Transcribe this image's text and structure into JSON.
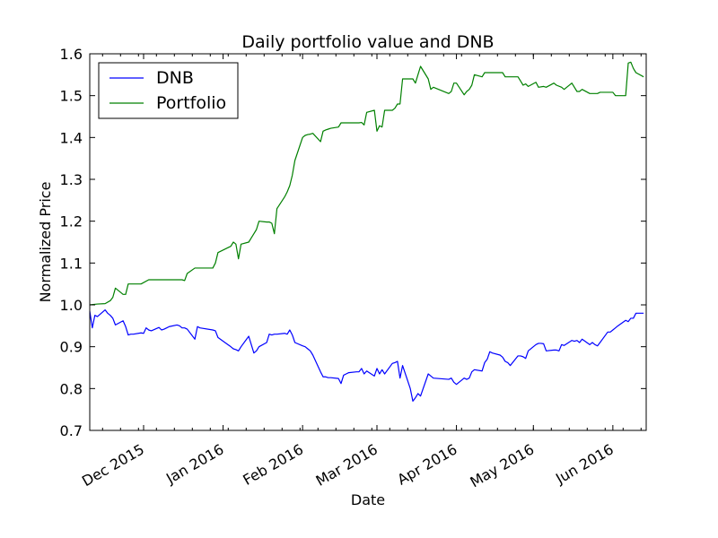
{
  "chart_data": {
    "type": "line",
    "title": "Daily portfolio value and DNB",
    "xlabel": "Date",
    "ylabel": "Normalized Price",
    "xlim": [
      "2015-11-10",
      "2016-06-14"
    ],
    "ylim": [
      0.7,
      1.6
    ],
    "yticks": [
      0.7,
      0.8,
      0.9,
      1.0,
      1.1,
      1.2,
      1.3,
      1.4,
      1.5,
      1.6
    ],
    "ytick_labels": [
      "0.7",
      "0.8",
      "0.9",
      "1.0",
      "1.1",
      "1.2",
      "1.3",
      "1.4",
      "1.5",
      "1.6"
    ],
    "xticks": [
      "2015-12-01",
      "2016-01-01",
      "2016-02-01",
      "2016-03-01",
      "2016-04-01",
      "2016-05-01",
      "2016-06-01"
    ],
    "xtick_labels": [
      "Dec 2015",
      "Jan 2016",
      "Feb 2016",
      "Mar 2016",
      "Apr 2016",
      "May 2016",
      "Jun 2016"
    ],
    "grid": false,
    "legend_position": "top-left",
    "series": [
      {
        "name": "DNB",
        "color": "#0000ff",
        "points": [
          [
            "2015-11-10",
            0.985
          ],
          [
            "2015-11-11",
            0.945
          ],
          [
            "2015-11-12",
            0.975
          ],
          [
            "2015-11-13",
            0.972
          ],
          [
            "2015-11-16",
            0.988
          ],
          [
            "2015-11-17",
            0.98
          ],
          [
            "2015-11-18",
            0.975
          ],
          [
            "2015-11-19",
            0.968
          ],
          [
            "2015-11-20",
            0.952
          ],
          [
            "2015-11-23",
            0.962
          ],
          [
            "2015-11-24",
            0.948
          ],
          [
            "2015-11-25",
            0.928
          ],
          [
            "2015-11-26",
            0.93
          ],
          [
            "2015-11-27",
            0.93
          ],
          [
            "2015-11-30",
            0.933
          ],
          [
            "2015-12-01",
            0.932
          ],
          [
            "2015-12-02",
            0.945
          ],
          [
            "2015-12-03",
            0.94
          ],
          [
            "2015-12-04",
            0.938
          ],
          [
            "2015-12-07",
            0.946
          ],
          [
            "2015-12-08",
            0.94
          ],
          [
            "2015-12-09",
            0.942
          ],
          [
            "2015-12-10",
            0.945
          ],
          [
            "2015-12-11",
            0.948
          ],
          [
            "2015-12-14",
            0.952
          ],
          [
            "2015-12-15",
            0.95
          ],
          [
            "2015-12-16",
            0.945
          ],
          [
            "2015-12-17",
            0.945
          ],
          [
            "2015-12-18",
            0.942
          ],
          [
            "2015-12-21",
            0.918
          ],
          [
            "2015-12-22",
            0.948
          ],
          [
            "2015-12-23",
            0.945
          ],
          [
            "2015-12-28",
            0.94
          ],
          [
            "2015-12-29",
            0.938
          ],
          [
            "2015-12-30",
            0.922
          ],
          [
            "2016-01-04",
            0.9
          ],
          [
            "2016-01-05",
            0.895
          ],
          [
            "2016-01-06",
            0.893
          ],
          [
            "2016-01-07",
            0.89
          ],
          [
            "2016-01-08",
            0.9
          ],
          [
            "2016-01-11",
            0.925
          ],
          [
            "2016-01-12",
            0.905
          ],
          [
            "2016-01-13",
            0.885
          ],
          [
            "2016-01-14",
            0.89
          ],
          [
            "2016-01-15",
            0.9
          ],
          [
            "2016-01-18",
            0.91
          ],
          [
            "2016-01-19",
            0.93
          ],
          [
            "2016-01-20",
            0.928
          ],
          [
            "2016-01-21",
            0.93
          ],
          [
            "2016-01-22",
            0.93
          ],
          [
            "2016-01-25",
            0.932
          ],
          [
            "2016-01-26",
            0.93
          ],
          [
            "2016-01-27",
            0.94
          ],
          [
            "2016-01-28",
            0.928
          ],
          [
            "2016-01-29",
            0.91
          ],
          [
            "2016-02-01",
            0.902
          ],
          [
            "2016-02-02",
            0.9
          ],
          [
            "2016-02-03",
            0.895
          ],
          [
            "2016-02-04",
            0.89
          ],
          [
            "2016-02-05",
            0.88
          ],
          [
            "2016-02-08",
            0.84
          ],
          [
            "2016-02-09",
            0.828
          ],
          [
            "2016-02-10",
            0.828
          ],
          [
            "2016-02-11",
            0.826
          ],
          [
            "2016-02-12",
            0.826
          ],
          [
            "2016-02-15",
            0.824
          ],
          [
            "2016-02-16",
            0.812
          ],
          [
            "2016-02-17",
            0.832
          ],
          [
            "2016-02-18",
            0.835
          ],
          [
            "2016-02-19",
            0.838
          ],
          [
            "2016-02-22",
            0.84
          ],
          [
            "2016-02-23",
            0.84
          ],
          [
            "2016-02-24",
            0.848
          ],
          [
            "2016-02-25",
            0.835
          ],
          [
            "2016-02-26",
            0.842
          ],
          [
            "2016-02-29",
            0.83
          ],
          [
            "2016-03-01",
            0.848
          ],
          [
            "2016-03-02",
            0.835
          ],
          [
            "2016-03-03",
            0.845
          ],
          [
            "2016-03-04",
            0.835
          ],
          [
            "2016-03-07",
            0.86
          ],
          [
            "2016-03-08",
            0.862
          ],
          [
            "2016-03-09",
            0.865
          ],
          [
            "2016-03-10",
            0.825
          ],
          [
            "2016-03-11",
            0.855
          ],
          [
            "2016-03-14",
            0.8
          ],
          [
            "2016-03-15",
            0.77
          ],
          [
            "2016-03-16",
            0.778
          ],
          [
            "2016-03-17",
            0.788
          ],
          [
            "2016-03-18",
            0.782
          ],
          [
            "2016-03-21",
            0.835
          ],
          [
            "2016-03-22",
            0.83
          ],
          [
            "2016-03-23",
            0.825
          ],
          [
            "2016-03-29",
            0.822
          ],
          [
            "2016-03-30",
            0.825
          ],
          [
            "2016-03-31",
            0.815
          ],
          [
            "2016-04-01",
            0.81
          ],
          [
            "2016-04-04",
            0.825
          ],
          [
            "2016-04-05",
            0.822
          ],
          [
            "2016-04-06",
            0.825
          ],
          [
            "2016-04-07",
            0.84
          ],
          [
            "2016-04-08",
            0.845
          ],
          [
            "2016-04-11",
            0.842
          ],
          [
            "2016-04-12",
            0.862
          ],
          [
            "2016-04-13",
            0.87
          ],
          [
            "2016-04-14",
            0.888
          ],
          [
            "2016-04-15",
            0.885
          ],
          [
            "2016-04-18",
            0.88
          ],
          [
            "2016-04-19",
            0.875
          ],
          [
            "2016-04-20",
            0.865
          ],
          [
            "2016-04-21",
            0.862
          ],
          [
            "2016-04-22",
            0.855
          ],
          [
            "2016-04-25",
            0.878
          ],
          [
            "2016-04-26",
            0.878
          ],
          [
            "2016-04-27",
            0.876
          ],
          [
            "2016-04-28",
            0.872
          ],
          [
            "2016-04-29",
            0.89
          ],
          [
            "2016-05-02",
            0.905
          ],
          [
            "2016-05-03",
            0.908
          ],
          [
            "2016-05-04",
            0.908
          ],
          [
            "2016-05-05",
            0.907
          ],
          [
            "2016-05-06",
            0.89
          ],
          [
            "2016-05-09",
            0.892
          ],
          [
            "2016-05-10",
            0.892
          ],
          [
            "2016-05-11",
            0.89
          ],
          [
            "2016-05-12",
            0.905
          ],
          [
            "2016-05-13",
            0.903
          ],
          [
            "2016-05-16",
            0.915
          ],
          [
            "2016-05-17",
            0.913
          ],
          [
            "2016-05-18",
            0.915
          ],
          [
            "2016-05-19",
            0.91
          ],
          [
            "2016-05-20",
            0.918
          ],
          [
            "2016-05-23",
            0.905
          ],
          [
            "2016-05-24",
            0.91
          ],
          [
            "2016-05-25",
            0.905
          ],
          [
            "2016-05-26",
            0.902
          ],
          [
            "2016-05-27",
            0.91
          ],
          [
            "2016-05-30",
            0.935
          ],
          [
            "2016-05-31",
            0.935
          ],
          [
            "2016-06-01",
            0.94
          ],
          [
            "2016-06-02",
            0.945
          ],
          [
            "2016-06-03",
            0.95
          ],
          [
            "2016-06-06",
            0.963
          ],
          [
            "2016-06-07",
            0.96
          ],
          [
            "2016-06-08",
            0.968
          ],
          [
            "2016-06-09",
            0.968
          ],
          [
            "2016-06-10",
            0.98
          ],
          [
            "2016-06-13",
            0.98
          ]
        ]
      },
      {
        "name": "Portfolio",
        "color": "#008000",
        "points": [
          [
            "2015-11-10",
            1.0
          ],
          [
            "2015-11-13",
            1.002
          ],
          [
            "2015-11-16",
            1.003
          ],
          [
            "2015-11-18",
            1.01
          ],
          [
            "2015-11-19",
            1.018
          ],
          [
            "2015-11-20",
            1.04
          ],
          [
            "2015-11-23",
            1.025
          ],
          [
            "2015-11-24",
            1.025
          ],
          [
            "2015-11-25",
            1.05
          ],
          [
            "2015-11-30",
            1.05
          ],
          [
            "2015-12-03",
            1.06
          ],
          [
            "2015-12-10",
            1.06
          ],
          [
            "2015-12-16",
            1.06
          ],
          [
            "2015-12-17",
            1.058
          ],
          [
            "2015-12-18",
            1.075
          ],
          [
            "2015-12-21",
            1.088
          ],
          [
            "2015-12-28",
            1.088
          ],
          [
            "2015-12-29",
            1.1
          ],
          [
            "2015-12-30",
            1.125
          ],
          [
            "2016-01-04",
            1.14
          ],
          [
            "2016-01-05",
            1.15
          ],
          [
            "2016-01-06",
            1.145
          ],
          [
            "2016-01-07",
            1.11
          ],
          [
            "2016-01-08",
            1.145
          ],
          [
            "2016-01-11",
            1.15
          ],
          [
            "2016-01-12",
            1.16
          ],
          [
            "2016-01-13",
            1.17
          ],
          [
            "2016-01-14",
            1.18
          ],
          [
            "2016-01-15",
            1.2
          ],
          [
            "2016-01-18",
            1.198
          ],
          [
            "2016-01-19",
            1.198
          ],
          [
            "2016-01-20",
            1.195
          ],
          [
            "2016-01-21",
            1.17
          ],
          [
            "2016-01-22",
            1.23
          ],
          [
            "2016-01-25",
            1.258
          ],
          [
            "2016-01-26",
            1.27
          ],
          [
            "2016-01-27",
            1.285
          ],
          [
            "2016-01-28",
            1.31
          ],
          [
            "2016-01-29",
            1.345
          ],
          [
            "2016-02-01",
            1.4
          ],
          [
            "2016-02-02",
            1.405
          ],
          [
            "2016-02-03",
            1.407
          ],
          [
            "2016-02-04",
            1.408
          ],
          [
            "2016-02-05",
            1.41
          ],
          [
            "2016-02-08",
            1.39
          ],
          [
            "2016-02-09",
            1.415
          ],
          [
            "2016-02-10",
            1.418
          ],
          [
            "2016-02-11",
            1.42
          ],
          [
            "2016-02-12",
            1.422
          ],
          [
            "2016-02-15",
            1.425
          ],
          [
            "2016-02-16",
            1.435
          ],
          [
            "2016-02-22",
            1.435
          ],
          [
            "2016-02-23",
            1.435
          ],
          [
            "2016-02-24",
            1.436
          ],
          [
            "2016-02-25",
            1.43
          ],
          [
            "2016-02-26",
            1.46
          ],
          [
            "2016-02-29",
            1.465
          ],
          [
            "2016-03-01",
            1.415
          ],
          [
            "2016-03-02",
            1.428
          ],
          [
            "2016-03-03",
            1.425
          ],
          [
            "2016-03-04",
            1.465
          ],
          [
            "2016-03-07",
            1.465
          ],
          [
            "2016-03-08",
            1.47
          ],
          [
            "2016-03-09",
            1.48
          ],
          [
            "2016-03-10",
            1.48
          ],
          [
            "2016-03-11",
            1.54
          ],
          [
            "2016-03-14",
            1.54
          ],
          [
            "2016-03-15",
            1.54
          ],
          [
            "2016-03-16",
            1.53
          ],
          [
            "2016-03-17",
            1.55
          ],
          [
            "2016-03-18",
            1.57
          ],
          [
            "2016-03-21",
            1.54
          ],
          [
            "2016-03-22",
            1.515
          ],
          [
            "2016-03-23",
            1.52
          ],
          [
            "2016-03-29",
            1.505
          ],
          [
            "2016-03-30",
            1.51
          ],
          [
            "2016-03-31",
            1.53
          ],
          [
            "2016-04-01",
            1.53
          ],
          [
            "2016-04-04",
            1.502
          ],
          [
            "2016-04-05",
            1.51
          ],
          [
            "2016-04-06",
            1.515
          ],
          [
            "2016-04-07",
            1.525
          ],
          [
            "2016-04-08",
            1.55
          ],
          [
            "2016-04-11",
            1.545
          ],
          [
            "2016-04-12",
            1.555
          ],
          [
            "2016-04-19",
            1.555
          ],
          [
            "2016-04-20",
            1.545
          ],
          [
            "2016-04-25",
            1.545
          ],
          [
            "2016-04-26",
            1.535
          ],
          [
            "2016-04-27",
            1.525
          ],
          [
            "2016-04-28",
            1.528
          ],
          [
            "2016-04-29",
            1.522
          ],
          [
            "2016-05-02",
            1.532
          ],
          [
            "2016-05-03",
            1.52
          ],
          [
            "2016-05-05",
            1.522
          ],
          [
            "2016-05-06",
            1.52
          ],
          [
            "2016-05-09",
            1.53
          ],
          [
            "2016-05-10",
            1.525
          ],
          [
            "2016-05-12",
            1.52
          ],
          [
            "2016-05-13",
            1.515
          ],
          [
            "2016-05-16",
            1.53
          ],
          [
            "2016-05-17",
            1.52
          ],
          [
            "2016-05-18",
            1.51
          ],
          [
            "2016-05-19",
            1.51
          ],
          [
            "2016-05-20",
            1.515
          ],
          [
            "2016-05-23",
            1.505
          ],
          [
            "2016-05-26",
            1.505
          ],
          [
            "2016-05-27",
            1.508
          ],
          [
            "2016-06-01",
            1.508
          ],
          [
            "2016-06-02",
            1.5
          ],
          [
            "2016-06-06",
            1.5
          ],
          [
            "2016-06-07",
            1.578
          ],
          [
            "2016-06-08",
            1.58
          ],
          [
            "2016-06-09",
            1.565
          ],
          [
            "2016-06-10",
            1.555
          ],
          [
            "2016-06-13",
            1.545
          ]
        ]
      }
    ]
  }
}
